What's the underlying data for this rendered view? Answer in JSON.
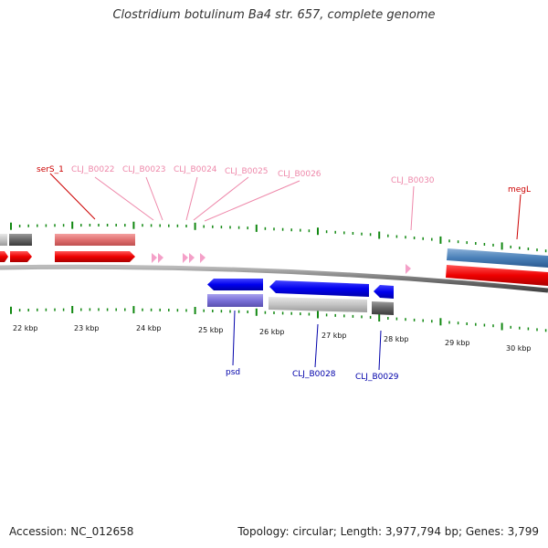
{
  "title": "Clostridium botulinum Ba4 str. 657, complete genome",
  "footer": {
    "accession": "Accession: NC_012658",
    "summary": "Topology: circular; Length: 3,977,794 bp; Genes: 3,799"
  },
  "colors": {
    "top_label": "#cc0000",
    "pink_label": "#ee88aa",
    "blue_label": "#0000aa",
    "ruler_tick": "#118811",
    "backbone": "#777777"
  },
  "scale_labels": [
    "22 kbp",
    "23 kbp",
    "24 kbp",
    "25 kbp",
    "26 kbp",
    "27 kbp",
    "28 kbp",
    "29 kbp",
    "30 kbp"
  ],
  "gene_labels": {
    "serS_1": "serS_1",
    "b0022": "CLJ_B0022",
    "b0023": "CLJ_B0023",
    "b0024": "CLJ_B0024",
    "b0025": "CLJ_B0025",
    "b0026": "CLJ_B0026",
    "b0030": "CLJ_B0030",
    "megL": "megL",
    "psd": "psd",
    "b0028": "CLJ_B0028",
    "b0029": "CLJ_B0029"
  }
}
